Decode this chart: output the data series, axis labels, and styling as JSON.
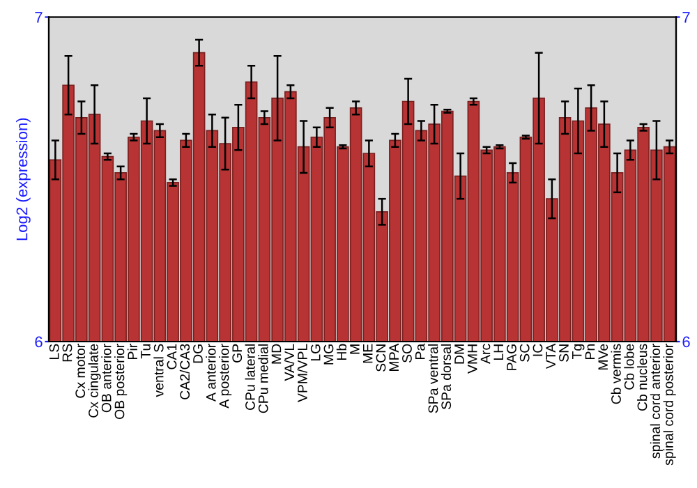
{
  "chart_data": {
    "type": "bar",
    "ylabel": "Log2 (expression)",
    "categories": [
      "LS",
      "RS",
      "Cx motor",
      "Cx cingulate",
      "OB anterior",
      "OB posterior",
      "Pir",
      "Tu",
      "ventral S",
      "CA1",
      "CA2/CA3",
      "DG",
      "A anterior",
      "A posterior",
      "GP",
      "CPu lateral",
      "CPu medial",
      "MD",
      "VA/VL",
      "VPM/VPL",
      "LG",
      "MG",
      "Hb",
      "M",
      "ME",
      "SCN",
      "MPA",
      "SO",
      "Pa",
      "SPa ventral",
      "SPa dorsal",
      "DM",
      "VMH",
      "Arc",
      "LH",
      "PAG",
      "SC",
      "IC",
      "VTA",
      "SN",
      "Tg",
      "Pn",
      "MVe",
      "Cb vermis",
      "Cb lobe",
      "Cb nucleus",
      "spinal cord anterior",
      "spinal cord posterior"
    ],
    "values": [
      6.56,
      6.79,
      6.69,
      6.7,
      6.57,
      6.52,
      6.63,
      6.68,
      6.65,
      6.49,
      6.62,
      6.89,
      6.65,
      6.61,
      6.66,
      6.8,
      6.69,
      6.75,
      6.77,
      6.6,
      6.63,
      6.69,
      6.6,
      6.72,
      6.58,
      6.4,
      6.62,
      6.74,
      6.65,
      6.67,
      6.71,
      6.51,
      6.74,
      6.59,
      6.6,
      6.52,
      6.63,
      6.75,
      6.44,
      6.69,
      6.68,
      6.72,
      6.67,
      6.52,
      6.59,
      6.66,
      6.59,
      6.6
    ],
    "errors": [
      0.06,
      0.09,
      0.05,
      0.09,
      0.01,
      0.02,
      0.01,
      0.07,
      0.02,
      0.01,
      0.02,
      0.04,
      0.05,
      0.08,
      0.07,
      0.05,
      0.02,
      0.13,
      0.02,
      0.08,
      0.03,
      0.03,
      0.005,
      0.02,
      0.04,
      0.04,
      0.02,
      0.07,
      0.03,
      0.06,
      0.005,
      0.07,
      0.01,
      0.01,
      0.005,
      0.03,
      0.005,
      0.14,
      0.06,
      0.05,
      0.1,
      0.07,
      0.07,
      0.06,
      0.03,
      0.01,
      0.09,
      0.02
    ],
    "color": "#b83434",
    "ylim": [
      6,
      7
    ],
    "yticks": [
      6,
      7
    ],
    "y2lim": [
      6,
      7
    ],
    "y2ticks": [
      6,
      7
    ],
    "grid": false
  }
}
